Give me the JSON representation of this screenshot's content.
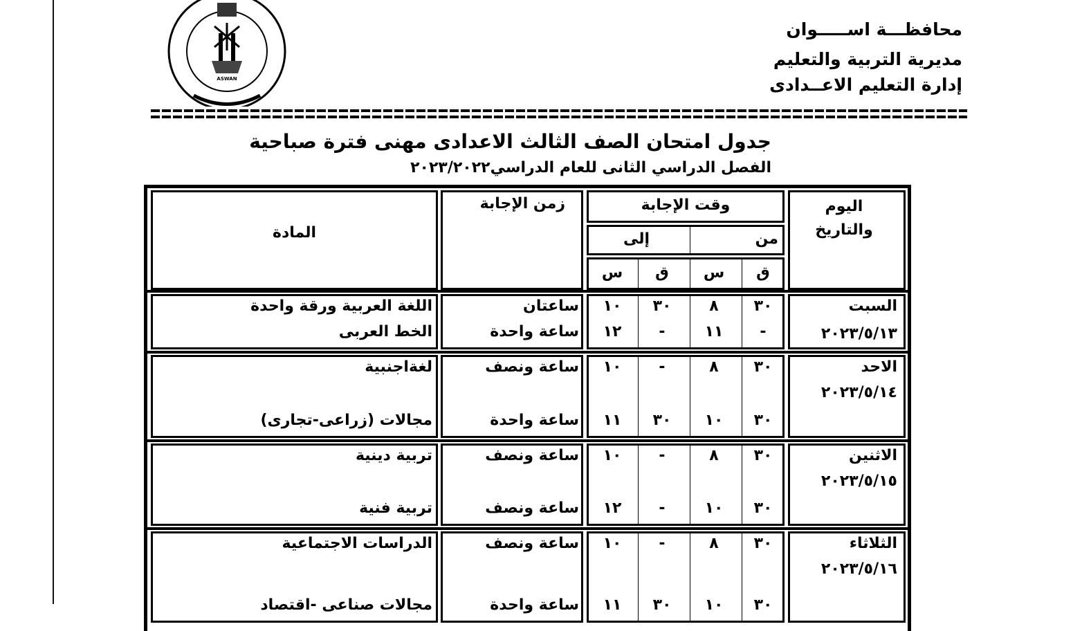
{
  "header": {
    "governorate": "محافظـــة اســـــوان",
    "directorate": "مديرية التربية والتعليم",
    "administration": "إدارة التعليم الاعــدادى"
  },
  "logo": {
    "text_arabic": "مديرية التربية والتعليم",
    "text_english": "Aswan Governorate Directorate of Education",
    "caption": "ASWAN"
  },
  "title": "جدول امتحان الصف الثالث الاعدادى مهنى فترة صباحية",
  "subtitle": {
    "text": "الفصل الدراسي الثانى للعام الدراسي",
    "year": "٢٠٢٣/٢٠٢٢"
  },
  "table": {
    "headers": {
      "day_date": "اليوم والتاريخ",
      "answer_time": "وقت الإجابة",
      "from": "من",
      "to": "إلى",
      "minute": "ق",
      "hour": "س",
      "duration": "زمن الإجابة",
      "subject": "المادة"
    },
    "rows": [
      {
        "day": "السبت",
        "date": "٢٠٢٣/٥/١٣",
        "entries": [
          {
            "subject": "اللغة العربية ورقة واحدة",
            "duration": "ساعتان",
            "from_m": "٣٠",
            "from_h": "٨",
            "to_m": "٣٠",
            "to_h": "١٠"
          },
          {
            "subject": "الخط العربى",
            "duration": "ساعة واحدة",
            "from_m": "-",
            "from_h": "١١",
            "to_m": "-",
            "to_h": "١٢"
          }
        ]
      },
      {
        "day": "الاحد",
        "date": "٢٠٢٣/٥/١٤",
        "entries": [
          {
            "subject": "لغةاجنبية",
            "duration": "ساعة ونصف",
            "from_m": "٣٠",
            "from_h": "٨",
            "to_m": "-",
            "to_h": "١٠"
          },
          {
            "subject": "مجالات (زراعى-تجارى)",
            "duration": "ساعة واحدة",
            "from_m": "٣٠",
            "from_h": "١٠",
            "to_m": "٣٠",
            "to_h": "١١"
          }
        ]
      },
      {
        "day": "الاثنين",
        "date": "٢٠٢٣/٥/١٥",
        "entries": [
          {
            "subject": "تربية دينية",
            "duration": "ساعة ونصف",
            "from_m": "٣٠",
            "from_h": "٨",
            "to_m": "-",
            "to_h": "١٠"
          },
          {
            "subject": "تربية فنية",
            "duration": "ساعة ونصف",
            "from_m": "٣٠",
            "from_h": "١٠",
            "to_m": "-",
            "to_h": "١٢"
          }
        ]
      },
      {
        "day": "الثلاثاء",
        "date": "٢٠٢٣/٥/١٦",
        "entries": [
          {
            "subject": "الدراسات الاجتماعية",
            "duration": "ساعة ونصف",
            "from_m": "٣٠",
            "from_h": "٨",
            "to_m": "-",
            "to_h": "١٠"
          },
          {
            "subject": "مجالات صناعى -اقتصاد",
            "duration": "ساعة واحدة",
            "from_m": "٣٠",
            "from_h": "١٠",
            "to_m": "٣٠",
            "to_h": "١١"
          }
        ]
      }
    ]
  }
}
